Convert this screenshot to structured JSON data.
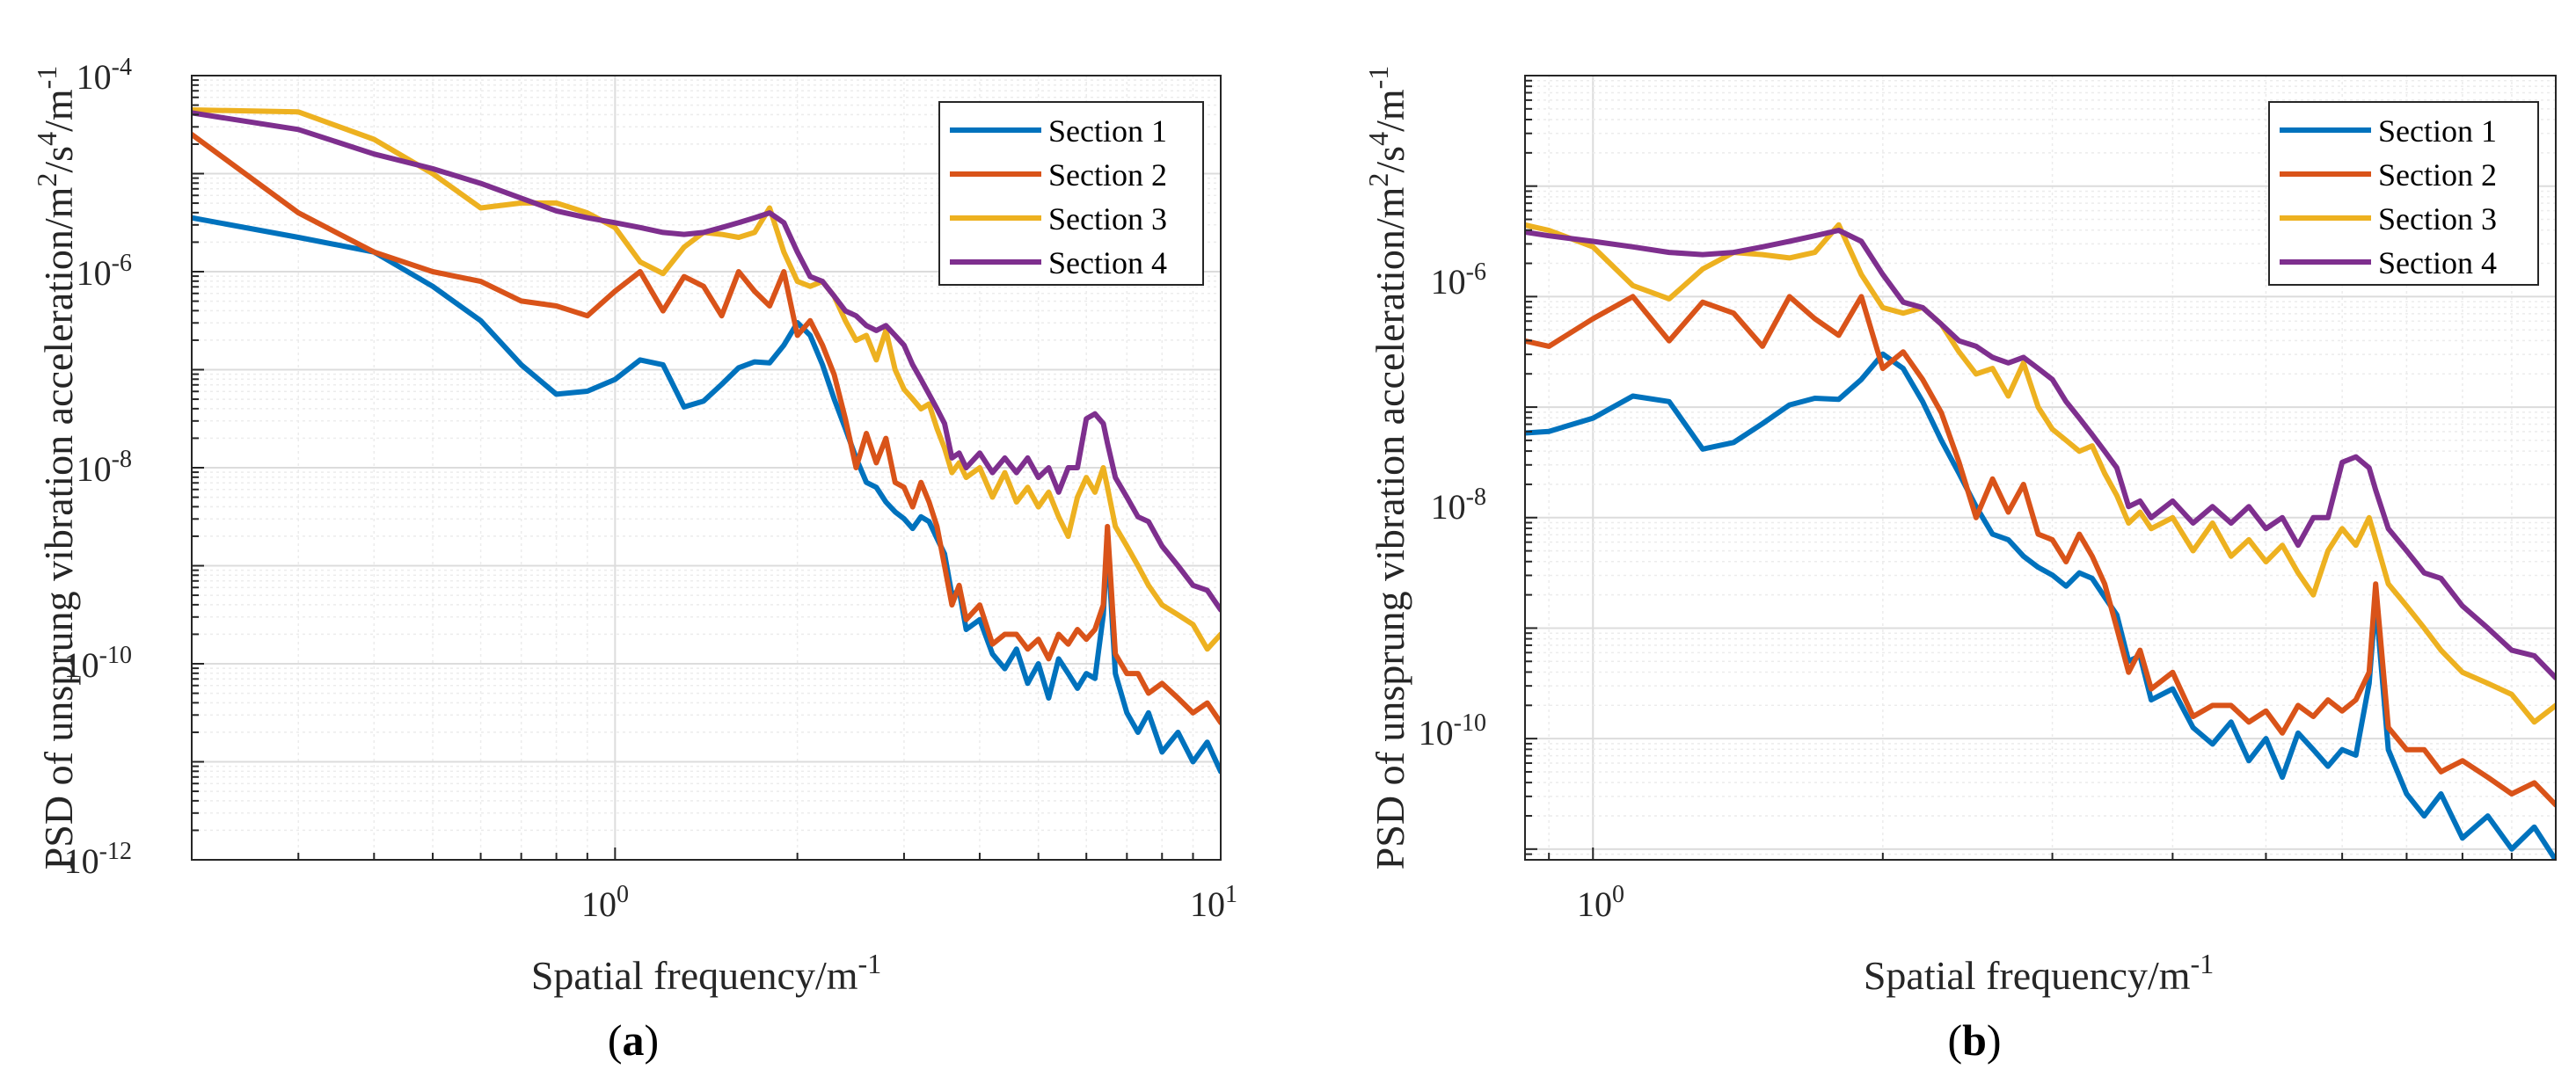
{
  "figure": {
    "panels": [
      {
        "caption_open": "(",
        "caption_letter": "a",
        "caption_close": ")"
      },
      {
        "caption_open": "(",
        "caption_letter": "b",
        "caption_close": ")"
      }
    ]
  },
  "chart_data": [
    {
      "type": "line",
      "scale": "log-log",
      "xlabel": "Spatial frequency/m",
      "xlabel_sup": "-1",
      "ylabel": "PSD of unsprung vibration acceleration/m",
      "ylabel_sup1": "2",
      "ylabel_mid": "/s",
      "ylabel_sup2": "4",
      "ylabel_end": "/m",
      "ylabel_sup3": "-1",
      "xlim": [
        0.2,
        10
      ],
      "ylim": [
        1e-12,
        0.0001
      ],
      "xticks": [
        {
          "base": "10",
          "exp": "0",
          "value": 1
        },
        {
          "base": "10",
          "exp": "1",
          "value": 10
        }
      ],
      "yticks": [
        {
          "base": "10",
          "exp": "-12",
          "value": -12
        },
        {
          "base": "10",
          "exp": "-10",
          "value": -10
        },
        {
          "base": "10",
          "exp": "-8",
          "value": -8
        },
        {
          "base": "10",
          "exp": "-6",
          "value": -6
        },
        {
          "base": "10",
          "exp": "-4",
          "value": -4
        }
      ],
      "grid": true,
      "legend_position": "top-right",
      "series": [
        {
          "name": "Section 1",
          "color": "#0072BD",
          "x": [
            0.2,
            0.3,
            0.4,
            0.5,
            0.6,
            0.7,
            0.8,
            0.9,
            1.0,
            1.1,
            1.2,
            1.3,
            1.4,
            1.5,
            1.6,
            1.7,
            1.8,
            1.9,
            2.0,
            2.1,
            2.2,
            2.3,
            2.4,
            2.5,
            2.6,
            2.7,
            2.8,
            2.9,
            3.0,
            3.1,
            3.2,
            3.3,
            3.4,
            3.5,
            3.6,
            3.7,
            3.8,
            4.0,
            4.2,
            4.4,
            4.6,
            4.8,
            5.0,
            5.2,
            5.4,
            5.6,
            5.8,
            6.0,
            6.2,
            6.4,
            6.5,
            6.7,
            7.0,
            7.3,
            7.6,
            8.0,
            8.5,
            9.0,
            9.5,
            10
          ],
          "y": [
            -5.45,
            -5.65,
            -5.8,
            -6.15,
            -6.5,
            -6.95,
            -7.25,
            -7.22,
            -7.1,
            -6.9,
            -6.95,
            -7.38,
            -7.32,
            -7.15,
            -6.98,
            -6.92,
            -6.93,
            -6.75,
            -6.52,
            -6.65,
            -6.95,
            -7.3,
            -7.6,
            -7.9,
            -8.15,
            -8.2,
            -8.35,
            -8.45,
            -8.52,
            -8.62,
            -8.5,
            -8.55,
            -8.72,
            -8.88,
            -9.3,
            -9.25,
            -9.65,
            -9.55,
            -9.9,
            -10.05,
            -9.85,
            -10.2,
            -10.0,
            -10.35,
            -9.95,
            -10.1,
            -10.25,
            -10.1,
            -10.15,
            -9.5,
            -8.75,
            -10.1,
            -10.5,
            -10.7,
            -10.5,
            -10.9,
            -10.7,
            -11.0,
            -10.8,
            -11.1
          ]
        },
        {
          "name": "Section 2",
          "color": "#D95319",
          "x": [
            0.2,
            0.3,
            0.4,
            0.5,
            0.6,
            0.7,
            0.8,
            0.9,
            1.0,
            1.1,
            1.2,
            1.3,
            1.4,
            1.5,
            1.6,
            1.7,
            1.8,
            1.9,
            2.0,
            2.1,
            2.2,
            2.3,
            2.4,
            2.5,
            2.6,
            2.7,
            2.8,
            2.9,
            3.0,
            3.1,
            3.2,
            3.3,
            3.4,
            3.5,
            3.6,
            3.7,
            3.8,
            4.0,
            4.2,
            4.4,
            4.6,
            4.8,
            5.0,
            5.2,
            5.4,
            5.6,
            5.8,
            6.0,
            6.2,
            6.4,
            6.5,
            6.7,
            7.0,
            7.3,
            7.6,
            8.0,
            8.5,
            9.0,
            9.5,
            10
          ],
          "y": [
            -4.6,
            -5.4,
            -5.8,
            -6.0,
            -6.1,
            -6.3,
            -6.35,
            -6.45,
            -6.2,
            -6.0,
            -6.4,
            -6.05,
            -6.15,
            -6.45,
            -6.0,
            -6.2,
            -6.35,
            -6.0,
            -6.65,
            -6.5,
            -6.75,
            -7.05,
            -7.5,
            -8.0,
            -7.65,
            -7.95,
            -7.7,
            -8.15,
            -8.2,
            -8.4,
            -8.15,
            -8.35,
            -8.6,
            -9.0,
            -9.4,
            -9.2,
            -9.55,
            -9.4,
            -9.8,
            -9.7,
            -9.7,
            -9.85,
            -9.75,
            -9.95,
            -9.7,
            -9.8,
            -9.65,
            -9.75,
            -9.65,
            -9.4,
            -8.6,
            -9.9,
            -10.1,
            -10.1,
            -10.3,
            -10.2,
            -10.35,
            -10.5,
            -10.4,
            -10.6
          ]
        },
        {
          "name": "Section 3",
          "color": "#EDB120",
          "x": [
            0.2,
            0.3,
            0.4,
            0.5,
            0.6,
            0.7,
            0.8,
            0.9,
            1.0,
            1.1,
            1.2,
            1.3,
            1.4,
            1.5,
            1.6,
            1.7,
            1.8,
            1.9,
            2.0,
            2.1,
            2.2,
            2.3,
            2.4,
            2.5,
            2.6,
            2.7,
            2.8,
            2.9,
            3.0,
            3.1,
            3.2,
            3.3,
            3.4,
            3.5,
            3.6,
            3.7,
            3.8,
            4.0,
            4.2,
            4.4,
            4.6,
            4.8,
            5.0,
            5.2,
            5.4,
            5.6,
            5.8,
            6.0,
            6.2,
            6.4,
            6.5,
            6.7,
            7.0,
            7.3,
            7.6,
            8.0,
            8.5,
            9.0,
            9.5,
            10
          ],
          "y": [
            -4.35,
            -4.37,
            -4.65,
            -5.0,
            -5.35,
            -5.3,
            -5.3,
            -5.4,
            -5.55,
            -5.9,
            -6.02,
            -5.75,
            -5.6,
            -5.62,
            -5.65,
            -5.6,
            -5.35,
            -5.8,
            -6.1,
            -6.15,
            -6.1,
            -6.25,
            -6.5,
            -6.7,
            -6.65,
            -6.9,
            -6.6,
            -7.0,
            -7.2,
            -7.3,
            -7.4,
            -7.35,
            -7.6,
            -7.8,
            -8.05,
            -7.95,
            -8.1,
            -8.0,
            -8.3,
            -8.05,
            -8.35,
            -8.2,
            -8.4,
            -8.25,
            -8.5,
            -8.7,
            -8.3,
            -8.1,
            -8.25,
            -8.0,
            -8.2,
            -8.6,
            -8.8,
            -9.0,
            -9.2,
            -9.4,
            -9.5,
            -9.6,
            -9.85,
            -9.7
          ]
        },
        {
          "name": "Section 4",
          "color": "#7E2F8E",
          "x": [
            0.2,
            0.3,
            0.4,
            0.5,
            0.6,
            0.7,
            0.8,
            0.9,
            1.0,
            1.1,
            1.2,
            1.3,
            1.4,
            1.5,
            1.6,
            1.7,
            1.8,
            1.9,
            2.0,
            2.1,
            2.2,
            2.3,
            2.4,
            2.5,
            2.6,
            2.7,
            2.8,
            2.9,
            3.0,
            3.1,
            3.2,
            3.3,
            3.4,
            3.5,
            3.6,
            3.7,
            3.8,
            4.0,
            4.2,
            4.4,
            4.6,
            4.8,
            5.0,
            5.2,
            5.4,
            5.6,
            5.8,
            6.0,
            6.2,
            6.4,
            6.5,
            6.7,
            7.0,
            7.3,
            7.6,
            8.0,
            8.5,
            9.0,
            9.5,
            10
          ],
          "y": [
            -4.38,
            -4.55,
            -4.8,
            -4.95,
            -5.1,
            -5.25,
            -5.38,
            -5.45,
            -5.5,
            -5.55,
            -5.6,
            -5.62,
            -5.6,
            -5.55,
            -5.5,
            -5.45,
            -5.4,
            -5.5,
            -5.8,
            -6.05,
            -6.1,
            -6.25,
            -6.4,
            -6.45,
            -6.55,
            -6.6,
            -6.55,
            -6.65,
            -6.75,
            -6.95,
            -7.1,
            -7.25,
            -7.4,
            -7.55,
            -7.9,
            -7.85,
            -8.0,
            -7.85,
            -8.05,
            -7.9,
            -8.05,
            -7.9,
            -8.1,
            -8.0,
            -8.25,
            -8.0,
            -8.0,
            -7.5,
            -7.45,
            -7.55,
            -7.75,
            -8.1,
            -8.3,
            -8.5,
            -8.55,
            -8.8,
            -9.0,
            -9.2,
            -9.25,
            -9.45
          ]
        }
      ]
    },
    {
      "type": "line",
      "scale": "log-log",
      "xlabel": "Spatial frequency/m",
      "xlabel_sup": "-1",
      "ylabel": "PSD of unsprung vibration acceleration/m",
      "ylabel_sup1": "2",
      "ylabel_mid": "/s",
      "ylabel_sup2": "4",
      "ylabel_end": "/m",
      "ylabel_sup3": "-1",
      "xlim": [
        0.85,
        10
      ],
      "ylim": [
        8e-12,
        0.0001
      ],
      "xticks": [
        {
          "base": "10",
          "exp": "0",
          "value": 1
        }
      ],
      "yticks": [
        {
          "base": "10",
          "exp": "-10",
          "value": -10
        },
        {
          "base": "10",
          "exp": "-8",
          "value": -8
        },
        {
          "base": "10",
          "exp": "-6",
          "value": -6
        }
      ],
      "grid": true,
      "legend_position": "top-right",
      "series_ref": "same sections as panel (a)"
    }
  ],
  "legend": {
    "items": [
      {
        "label": "Section 1",
        "color": "#0072BD"
      },
      {
        "label": "Section 2",
        "color": "#D95319"
      },
      {
        "label": "Section 3",
        "color": "#EDB120"
      },
      {
        "label": "Section 4",
        "color": "#7E2F8E"
      }
    ]
  }
}
